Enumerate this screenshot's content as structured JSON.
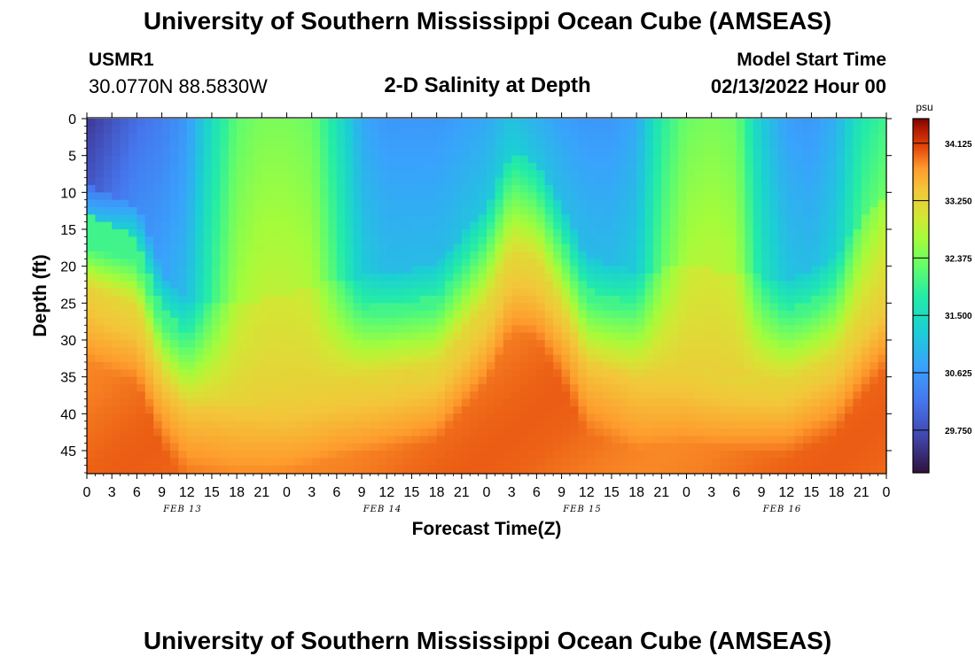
{
  "header": {
    "title": "University of Southern Mississippi Ocean Cube (AMSEAS)",
    "station": "USMR1",
    "coords": "30.0770N  88.5830W",
    "subtitle": "2-D Salinity at Depth",
    "model_start_label": "Model Start Time",
    "model_start_value": "02/13/2022 Hour 00"
  },
  "footer": {
    "title": "University of Southern Mississippi Ocean Cube (AMSEAS)"
  },
  "chart_data": {
    "type": "heatmap",
    "title": "2-D Salinity at Depth",
    "xlabel": "Forecast Time(Z)",
    "ylabel": "Depth (ft)",
    "x_range": [
      0,
      96
    ],
    "y_range": [
      0,
      48
    ],
    "x_ticks": [
      "0",
      "3",
      "6",
      "9",
      "12",
      "15",
      "18",
      "21",
      "0",
      "3",
      "6",
      "9",
      "12",
      "15",
      "18",
      "21",
      "0",
      "3",
      "6",
      "9",
      "12",
      "15",
      "18",
      "21",
      "0",
      "3",
      "6",
      "9",
      "12",
      "15",
      "18",
      "21",
      "0"
    ],
    "y_ticks": [
      "0",
      "5",
      "10",
      "15",
      "20",
      "25",
      "30",
      "35",
      "40",
      "45"
    ],
    "y_tick_values": [
      0,
      5,
      10,
      15,
      20,
      25,
      30,
      35,
      40,
      45
    ],
    "date_labels": [
      {
        "label": "FEB 13",
        "hour": 10
      },
      {
        "label": "FEB 14",
        "hour": 34
      },
      {
        "label": "FEB 15",
        "hour": 58
      },
      {
        "label": "FEB 16",
        "hour": 82
      }
    ],
    "colorbar": {
      "unit": "psu",
      "min": 29.1,
      "max": 34.5,
      "ticks": [
        "34.125",
        "33.250",
        "32.375",
        "31.500",
        "30.625",
        "29.750"
      ],
      "tick_values": [
        34.125,
        33.25,
        32.375,
        31.5,
        30.625,
        29.75
      ]
    },
    "surface_profile": [
      {
        "hour": 0,
        "depth": 0,
        "value": 29.5
      },
      {
        "hour": 3,
        "depth": 0,
        "value": 29.8
      },
      {
        "hour": 6,
        "depth": 0,
        "value": 30.1
      },
      {
        "hour": 9,
        "depth": 0,
        "value": 30.3
      },
      {
        "hour": 12,
        "depth": 0,
        "value": 30.6
      },
      {
        "hour": 15,
        "depth": 0,
        "value": 31.5
      },
      {
        "hour": 18,
        "depth": 0,
        "value": 32.2
      },
      {
        "hour": 21,
        "depth": 0,
        "value": 32.4
      },
      {
        "hour": 24,
        "depth": 0,
        "value": 32.4
      },
      {
        "hour": 27,
        "depth": 0,
        "value": 32.3
      },
      {
        "hour": 30,
        "depth": 0,
        "value": 31.6
      },
      {
        "hour": 33,
        "depth": 0,
        "value": 30.8
      },
      {
        "hour": 36,
        "depth": 0,
        "value": 30.6
      },
      {
        "hour": 39,
        "depth": 0,
        "value": 30.6
      },
      {
        "hour": 42,
        "depth": 0,
        "value": 30.6
      },
      {
        "hour": 45,
        "depth": 0,
        "value": 30.7
      },
      {
        "hour": 48,
        "depth": 0,
        "value": 30.8
      },
      {
        "hour": 51,
        "depth": 0,
        "value": 31.1
      },
      {
        "hour": 54,
        "depth": 0,
        "value": 30.9
      },
      {
        "hour": 57,
        "depth": 0,
        "value": 30.7
      },
      {
        "hour": 60,
        "depth": 0,
        "value": 30.6
      },
      {
        "hour": 63,
        "depth": 0,
        "value": 30.6
      },
      {
        "hour": 66,
        "depth": 0,
        "value": 30.8
      },
      {
        "hour": 69,
        "depth": 0,
        "value": 31.8
      },
      {
        "hour": 72,
        "depth": 0,
        "value": 32.3
      },
      {
        "hour": 75,
        "depth": 0,
        "value": 32.4
      },
      {
        "hour": 78,
        "depth": 0,
        "value": 32.3
      },
      {
        "hour": 81,
        "depth": 0,
        "value": 31.2
      },
      {
        "hour": 84,
        "depth": 0,
        "value": 30.7
      },
      {
        "hour": 87,
        "depth": 0,
        "value": 30.6
      },
      {
        "hour": 90,
        "depth": 0,
        "value": 30.9
      },
      {
        "hour": 93,
        "depth": 0,
        "value": 31.7
      },
      {
        "hour": 96,
        "depth": 0,
        "value": 32.0
      }
    ],
    "halocline_depth": [
      {
        "hour": 0,
        "depth": 17
      },
      {
        "hour": 6,
        "depth": 20
      },
      {
        "hour": 9,
        "depth": 29
      },
      {
        "hour": 12,
        "depth": 33
      },
      {
        "hour": 18,
        "depth": 33
      },
      {
        "hour": 24,
        "depth": 32
      },
      {
        "hour": 30,
        "depth": 30
      },
      {
        "hour": 36,
        "depth": 29
      },
      {
        "hour": 42,
        "depth": 28
      },
      {
        "hour": 48,
        "depth": 20
      },
      {
        "hour": 51,
        "depth": 13
      },
      {
        "hour": 54,
        "depth": 14
      },
      {
        "hour": 57,
        "depth": 20
      },
      {
        "hour": 60,
        "depth": 27
      },
      {
        "hour": 66,
        "depth": 29
      },
      {
        "hour": 72,
        "depth": 28
      },
      {
        "hour": 78,
        "depth": 29
      },
      {
        "hour": 84,
        "depth": 30
      },
      {
        "hour": 90,
        "depth": 27
      },
      {
        "hour": 93,
        "depth": 22
      },
      {
        "hour": 96,
        "depth": 18
      }
    ],
    "bottom_value": 33.9
  }
}
